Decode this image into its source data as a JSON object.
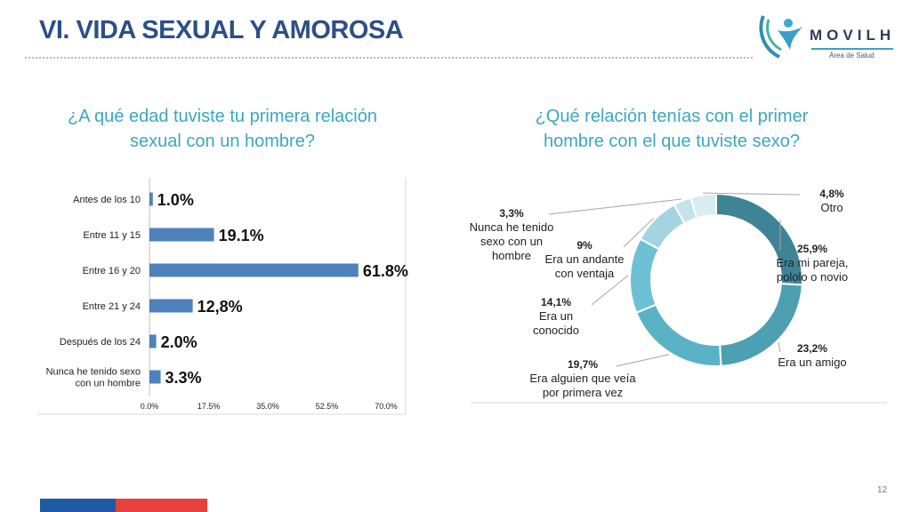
{
  "header": {
    "title": "VI. VIDA SEXUAL Y AMOROSA"
  },
  "logo": {
    "word": "MOVILH",
    "subtitle": "Área de Salud",
    "icon": "person-figure-icon"
  },
  "colors": {
    "title": "#2c4f86",
    "question": "#3ba7c0",
    "bar": "#4f81bd"
  },
  "chart_data": [
    {
      "type": "bar",
      "orientation": "horizontal",
      "title": "¿A qué edad tuviste tu primera relación sexual con un hombre?",
      "title_lines": [
        "¿A qué edad tuviste tu primera relación",
        "sexual con un hombre?"
      ],
      "categories": [
        [
          "Antes de los 10"
        ],
        [
          "Entre 11 y 15"
        ],
        [
          "Entre 16 y 20"
        ],
        [
          "Entre 21 y 24"
        ],
        [
          "Después de los 24"
        ],
        [
          "Nunca he tenido sexo",
          "con un hombre"
        ]
      ],
      "values": [
        1.0,
        19.1,
        61.8,
        12.8,
        2.0,
        3.3
      ],
      "data_labels": [
        "1.0%",
        "19.1%",
        "61.8%",
        "12,8%",
        "2.0%",
        "3.3%"
      ],
      "xlim": [
        0,
        70
      ],
      "ticks": [
        0,
        17.5,
        35,
        52.5,
        70
      ],
      "tick_labels": [
        "0.0%",
        "17.5%",
        "35.0%",
        "52.5%",
        "70.0%"
      ],
      "grid": false
    },
    {
      "type": "pie",
      "variant": "donut",
      "title": "¿Qué relación tenías con el primer hombre con el que tuviste sexo?",
      "title_lines": [
        "¿Qué relación tenías con el primer",
        "hombre con el que tuviste sexo?"
      ],
      "slices": [
        {
          "value": 25.9,
          "pct": "25,9%",
          "label": [
            "Era mi pareja,",
            "pololo o novio"
          ],
          "color": "#3e8496"
        },
        {
          "value": 23.2,
          "pct": "23,2%",
          "label": [
            "Era un amigo"
          ],
          "color": "#4d9fb2"
        },
        {
          "value": 19.7,
          "pct": "19,7%",
          "label": [
            "Era alguien que veía",
            "por primera vez"
          ],
          "color": "#5ab2c6"
        },
        {
          "value": 14.1,
          "pct": "14,1%",
          "label": [
            "Era un",
            "conocido"
          ],
          "color": "#6cc1d5"
        },
        {
          "value": 9.0,
          "pct": "9%",
          "label": [
            "Era un andante",
            "con ventaja"
          ],
          "color": "#a5d4e1"
        },
        {
          "value": 3.3,
          "pct": "3,3%",
          "label": [
            "Nunca he tenido",
            "sexo con un",
            "hombre"
          ],
          "color": "#c4e2eb"
        },
        {
          "value": 4.8,
          "pct": "4,8%",
          "label": [
            "Otro"
          ],
          "color": "#d8ecf2"
        }
      ]
    }
  ],
  "footer": {
    "page_number": "12"
  }
}
